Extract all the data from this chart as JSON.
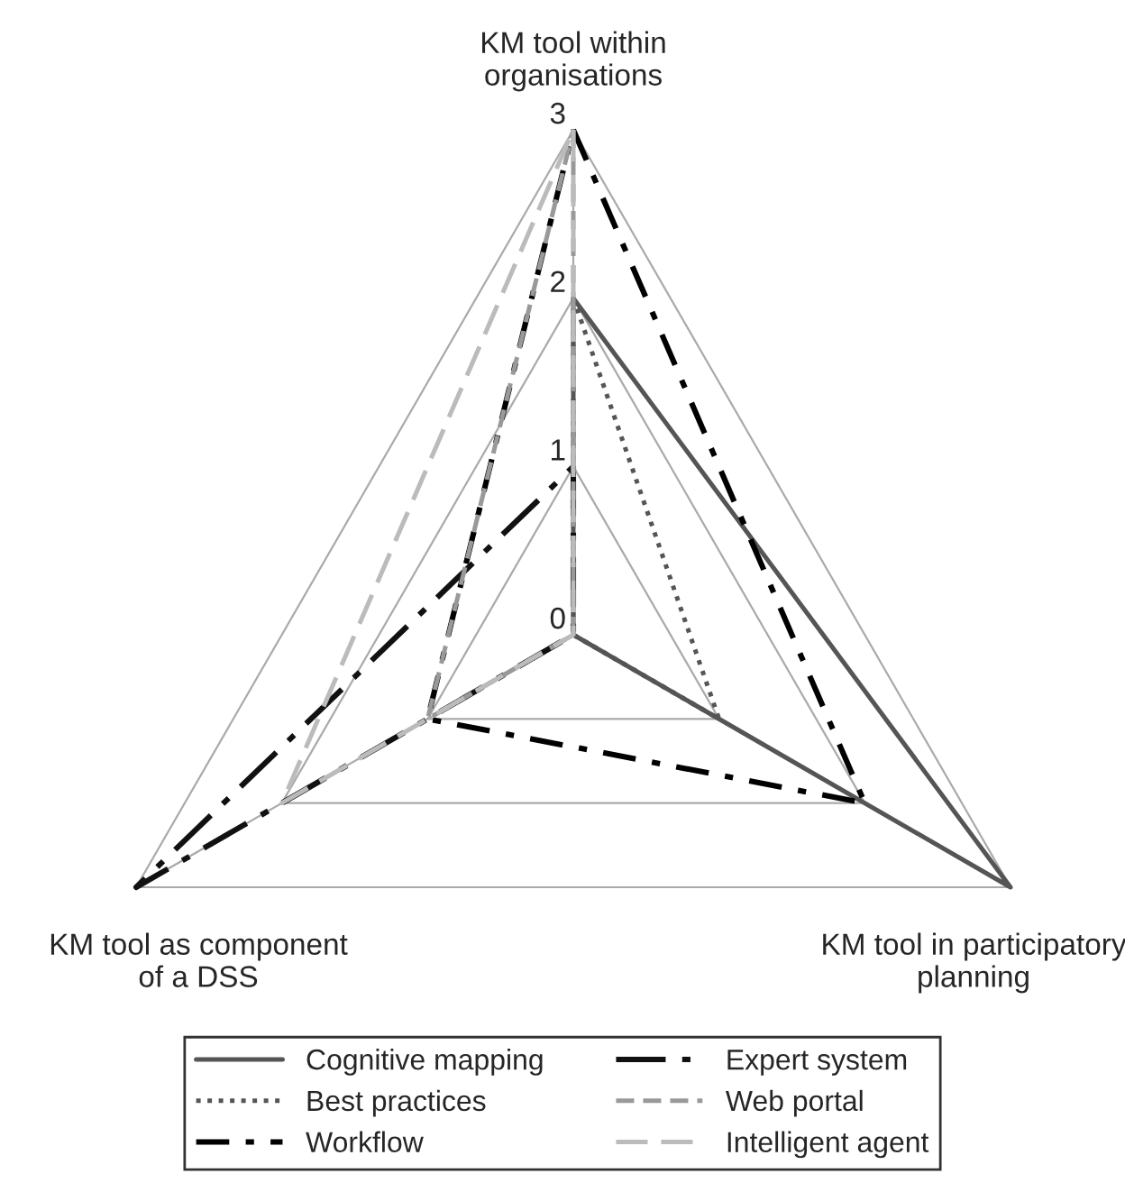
{
  "chart_data": {
    "type": "radar",
    "categories": [
      "KM tool within\norganisations",
      "KM tool in participatory\nplanning",
      "KM tool as component\nof a DSS"
    ],
    "ylim": [
      0,
      3
    ],
    "yticks": [
      0,
      1,
      2,
      3
    ],
    "grid": true,
    "legend": "bottom",
    "series": [
      {
        "name": "Cognitive mapping",
        "color": "#555555",
        "line_style": "solid",
        "values": [
          2,
          3,
          0
        ]
      },
      {
        "name": "Best practices",
        "color": "#555555",
        "line_style": "dotted",
        "values": [
          2,
          1,
          0
        ]
      },
      {
        "name": "Workflow",
        "color": "#000000",
        "line_style": "dashdot",
        "values": [
          3,
          2,
          1
        ]
      },
      {
        "name": "Expert system",
        "color": "#111111",
        "line_style": "longdashdot",
        "values": [
          1,
          0,
          3
        ]
      },
      {
        "name": "Web portal",
        "color": "#999999",
        "line_style": "dashed",
        "values": [
          3,
          0,
          1
        ]
      },
      {
        "name": "Intelligent agent",
        "color": "#bbbbbb",
        "line_style": "longdashed",
        "values": [
          3,
          0,
          2
        ]
      }
    ]
  }
}
